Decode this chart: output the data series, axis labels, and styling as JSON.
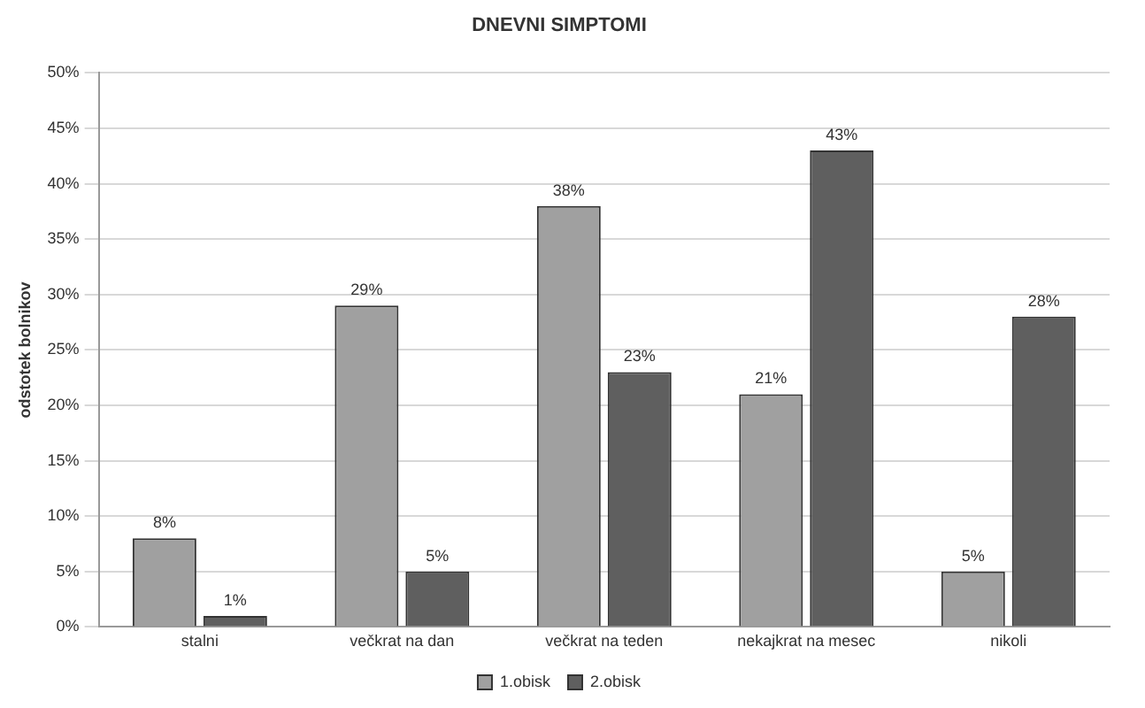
{
  "chart_data": {
    "type": "bar",
    "title": "DNEVNI SIMPTOMI",
    "ylabel": "odstotek bolnikov",
    "categories": [
      "stalni",
      "večkrat na dan",
      "večkrat na teden",
      "nekajkrat na mesec",
      "nikoli"
    ],
    "series": [
      {
        "name": "1.obisk",
        "color": "#a0a0a0",
        "values": [
          8,
          29,
          38,
          21,
          5
        ],
        "value_labels": [
          "8%",
          "29%",
          "38%",
          "21%",
          "5%"
        ]
      },
      {
        "name": "2.obisk",
        "color": "#5f5f5f",
        "values": [
          1,
          5,
          23,
          43,
          28
        ],
        "value_labels": [
          "1%",
          "5%",
          "23%",
          "43%",
          "28%"
        ]
      }
    ],
    "ylim": [
      0,
      50
    ],
    "yticks": [
      {
        "value": 0,
        "label": "0%"
      },
      {
        "value": 5,
        "label": "5%"
      },
      {
        "value": 10,
        "label": "10%"
      },
      {
        "value": 15,
        "label": "15%"
      },
      {
        "value": 20,
        "label": "20%"
      },
      {
        "value": 25,
        "label": "25%"
      },
      {
        "value": 30,
        "label": "30%"
      },
      {
        "value": 35,
        "label": "35%"
      },
      {
        "value": 40,
        "label": "40%"
      },
      {
        "value": 45,
        "label": "45%"
      },
      {
        "value": 50,
        "label": "50%"
      }
    ],
    "grid": "y",
    "legend": "bottom"
  }
}
